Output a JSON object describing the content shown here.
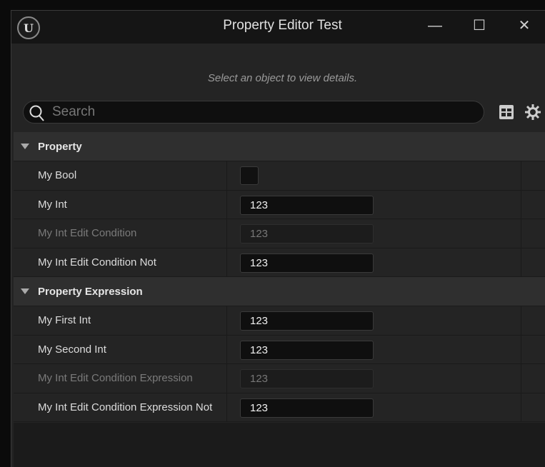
{
  "window": {
    "title": "Property Editor Test",
    "minimize": "—",
    "maximize": "☐",
    "close": "✕",
    "logo": "U"
  },
  "hint": "Select an object to view details.",
  "search": {
    "placeholder": "Search",
    "value": ""
  },
  "categories": [
    {
      "label": "Property",
      "rows": [
        {
          "label": "My Bool",
          "type": "checkbox",
          "checked": false,
          "enabled": true
        },
        {
          "label": "My Int",
          "value": "123",
          "enabled": true
        },
        {
          "label": "My Int Edit Condition",
          "value": "123",
          "enabled": false
        },
        {
          "label": "My Int Edit Condition Not",
          "value": "123",
          "enabled": true
        }
      ]
    },
    {
      "label": "Property Expression",
      "rows": [
        {
          "label": "My First Int",
          "value": "123",
          "enabled": true
        },
        {
          "label": "My Second Int",
          "value": "123",
          "enabled": true
        },
        {
          "label": "My Int Edit Condition Expression",
          "value": "123",
          "enabled": false
        },
        {
          "label": "My Int Edit Condition Expression Not",
          "value": "123",
          "enabled": true
        }
      ]
    }
  ]
}
